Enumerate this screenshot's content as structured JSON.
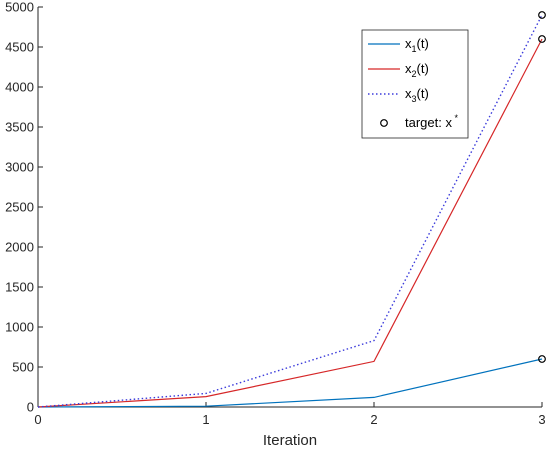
{
  "chart_data": {
    "type": "line",
    "xlabel": "Iteration",
    "ylabel": "",
    "xlim": [
      0,
      3
    ],
    "ylim": [
      0,
      5000
    ],
    "xticks": [
      0,
      1,
      2,
      3
    ],
    "yticks": [
      0,
      500,
      1000,
      1500,
      2000,
      2500,
      3000,
      3500,
      4000,
      4500,
      5000
    ],
    "grid": false,
    "legend_position": "top-right",
    "x": [
      0,
      1,
      2,
      3
    ],
    "series": [
      {
        "name_base": "x",
        "name_sub": "1",
        "name_suffix": "(t)",
        "values": [
          0,
          10,
          120,
          600
        ],
        "color": "#0072BD",
        "style": "solid"
      },
      {
        "name_base": "x",
        "name_sub": "2",
        "name_suffix": "(t)",
        "values": [
          0,
          130,
          570,
          4600
        ],
        "color": "#D62728",
        "style": "solid"
      },
      {
        "name_base": "x",
        "name_sub": "3",
        "name_suffix": "(t)",
        "values": [
          0,
          170,
          830,
          4900
        ],
        "color": "#3B3BDB",
        "style": "dotted"
      }
    ],
    "targets": {
      "name": "target: x",
      "name_sup": "*",
      "points": [
        {
          "x": 3,
          "y": 600
        },
        {
          "x": 3,
          "y": 4600
        },
        {
          "x": 3,
          "y": 4900
        }
      ]
    }
  }
}
